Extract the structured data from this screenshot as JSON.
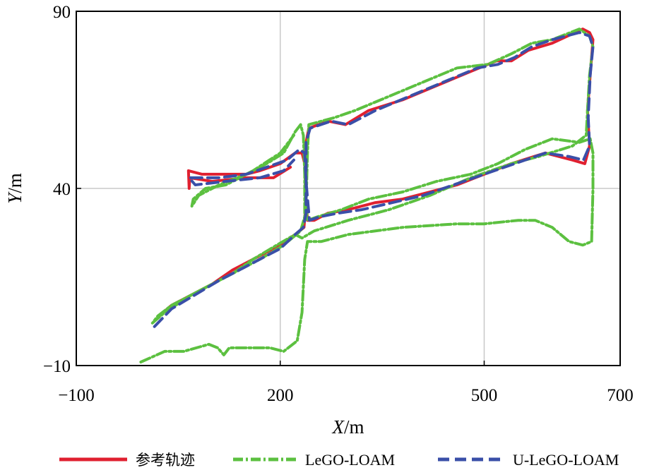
{
  "chart_data": {
    "type": "line",
    "title": "",
    "xlabel": {
      "var": "X",
      "unit": "/m"
    },
    "ylabel": {
      "var": "Y",
      "unit": "/m"
    },
    "xlim": [
      -100,
      700
    ],
    "ylim": [
      -10,
      90
    ],
    "xticks": [
      -100,
      200,
      500,
      700
    ],
    "yticks": [
      -10,
      40,
      90
    ],
    "xtick_labels": [
      "−100",
      "200",
      "500",
      "700"
    ],
    "ytick_labels": [
      "−10",
      "40",
      "90"
    ],
    "grid": {
      "x": [
        200,
        500
      ],
      "y": [
        40
      ]
    },
    "legend": {
      "placement": "bottom"
    },
    "series": [
      {
        "name": "参考轨迹",
        "color": "#e02030",
        "dash": "solid",
        "points": [
          [
            22,
            4
          ],
          [
            40,
            7
          ],
          [
            70,
            10
          ],
          [
            100,
            13
          ],
          [
            130,
            17
          ],
          [
            160,
            20
          ],
          [
            180,
            22
          ],
          [
            200,
            24
          ],
          [
            222,
            27
          ],
          [
            235,
            29
          ],
          [
            237,
            34
          ],
          [
            238,
            44
          ],
          [
            237,
            52
          ],
          [
            242,
            57
          ],
          [
            270,
            59
          ],
          [
            296,
            58
          ],
          [
            330,
            62
          ],
          [
            380,
            65
          ],
          [
            430,
            69
          ],
          [
            480,
            73
          ],
          [
            518,
            76
          ],
          [
            540,
            76
          ],
          [
            565,
            79
          ],
          [
            600,
            81
          ],
          [
            645,
            85
          ],
          [
            655,
            84
          ],
          [
            660,
            82
          ],
          [
            656,
            72
          ],
          [
            652,
            62
          ],
          [
            655,
            52
          ],
          [
            648,
            47
          ],
          [
            630,
            48
          ],
          [
            590,
            50
          ],
          [
            540,
            47
          ],
          [
            500,
            44
          ],
          [
            460,
            41
          ],
          [
            420,
            39
          ],
          [
            380,
            37
          ],
          [
            340,
            36
          ],
          [
            300,
            34
          ],
          [
            270,
            33
          ],
          [
            250,
            31
          ],
          [
            240,
            31
          ],
          [
            237,
            40
          ],
          [
            236,
            47
          ],
          [
            232,
            50
          ],
          [
            222,
            50
          ],
          [
            200,
            47
          ],
          [
            170,
            45
          ],
          [
            150,
            44
          ],
          [
            120,
            44
          ],
          [
            85,
            44
          ],
          [
            65,
            45
          ],
          [
            66,
            40
          ],
          [
            67,
            43
          ],
          [
            100,
            42
          ],
          [
            150,
            43
          ],
          [
            190,
            43
          ],
          [
            215,
            46
          ]
        ]
      },
      {
        "name": "LeGO-LOAM",
        "color": "#5cc040",
        "dash": "dash-dot",
        "points": [
          [
            -5,
            -9
          ],
          [
            30,
            -6
          ],
          [
            58,
            -6
          ],
          [
            95,
            -4
          ],
          [
            108,
            -5
          ],
          [
            117,
            -7
          ],
          [
            125,
            -5
          ],
          [
            185,
            -5
          ],
          [
            205,
            -6
          ],
          [
            225,
            -3
          ],
          [
            232,
            5
          ],
          [
            236,
            20
          ],
          [
            240,
            25
          ],
          [
            260,
            25
          ],
          [
            300,
            27
          ],
          [
            380,
            29
          ],
          [
            460,
            30
          ],
          [
            500,
            30
          ],
          [
            550,
            31
          ],
          [
            575,
            31
          ],
          [
            600,
            29
          ],
          [
            625,
            25
          ],
          [
            645,
            24
          ],
          [
            658,
            25
          ],
          [
            660,
            40
          ],
          [
            660,
            50
          ],
          [
            656,
            54
          ],
          [
            640,
            53
          ],
          [
            600,
            54
          ],
          [
            560,
            51
          ],
          [
            520,
            47
          ],
          [
            480,
            44
          ],
          [
            430,
            42
          ],
          [
            380,
            39
          ],
          [
            330,
            37
          ],
          [
            290,
            34
          ],
          [
            255,
            32
          ],
          [
            240,
            31
          ],
          [
            238,
            35
          ],
          [
            240,
            50
          ],
          [
            242,
            58
          ],
          [
            280,
            60
          ],
          [
            310,
            62
          ],
          [
            360,
            66
          ],
          [
            410,
            70
          ],
          [
            460,
            74
          ],
          [
            505,
            75
          ],
          [
            540,
            78
          ],
          [
            570,
            81
          ],
          [
            600,
            82
          ],
          [
            640,
            85
          ],
          [
            655,
            83
          ],
          [
            660,
            80
          ],
          [
            655,
            72
          ],
          [
            652,
            62
          ],
          [
            650,
            55
          ],
          [
            630,
            52
          ],
          [
            580,
            49
          ],
          [
            540,
            47
          ],
          [
            480,
            43
          ],
          [
            420,
            38
          ],
          [
            360,
            34
          ],
          [
            300,
            31
          ],
          [
            250,
            28
          ],
          [
            232,
            26
          ],
          [
            222,
            27
          ],
          [
            195,
            24
          ],
          [
            160,
            20
          ],
          [
            130,
            16
          ],
          [
            100,
            13
          ],
          [
            70,
            10
          ],
          [
            40,
            7
          ],
          [
            20,
            4
          ],
          [
            12,
            2
          ],
          [
            30,
            5
          ],
          [
            70,
            10
          ],
          [
            120,
            15
          ],
          [
            170,
            20
          ],
          [
            205,
            24
          ],
          [
            230,
            28
          ],
          [
            236,
            32
          ],
          [
            236,
            44
          ],
          [
            234,
            55
          ],
          [
            230,
            58
          ],
          [
            222,
            56
          ],
          [
            205,
            50
          ],
          [
            180,
            47
          ],
          [
            150,
            44
          ],
          [
            110,
            41
          ],
          [
            80,
            38
          ],
          [
            70,
            35
          ],
          [
            72,
            37
          ],
          [
            90,
            40
          ],
          [
            120,
            41
          ],
          [
            160,
            45
          ],
          [
            200,
            50
          ],
          [
            220,
            55
          ]
        ]
      },
      {
        "name": "U-LeGO-LOAM",
        "color": "#3a4fa8",
        "dash": "dashed",
        "points": [
          [
            15,
            1
          ],
          [
            40,
            6
          ],
          [
            75,
            10
          ],
          [
            110,
            14
          ],
          [
            140,
            17
          ],
          [
            170,
            20
          ],
          [
            200,
            23
          ],
          [
            222,
            27
          ],
          [
            234,
            29
          ],
          [
            238,
            33
          ],
          [
            238,
            45
          ],
          [
            238,
            53
          ],
          [
            244,
            57
          ],
          [
            275,
            59
          ],
          [
            300,
            58
          ],
          [
            340,
            62
          ],
          [
            390,
            66
          ],
          [
            440,
            70
          ],
          [
            490,
            74
          ],
          [
            520,
            75
          ],
          [
            545,
            77
          ],
          [
            570,
            80
          ],
          [
            600,
            82
          ],
          [
            640,
            84
          ],
          [
            655,
            83
          ],
          [
            660,
            80
          ],
          [
            656,
            72
          ],
          [
            653,
            60
          ],
          [
            655,
            52
          ],
          [
            646,
            48
          ],
          [
            625,
            49
          ],
          [
            590,
            50
          ],
          [
            545,
            47
          ],
          [
            500,
            44
          ],
          [
            455,
            41
          ],
          [
            410,
            38
          ],
          [
            365,
            36
          ],
          [
            320,
            34
          ],
          [
            285,
            33
          ],
          [
            258,
            32
          ],
          [
            243,
            31
          ],
          [
            238,
            42
          ],
          [
            236,
            50
          ],
          [
            228,
            51
          ],
          [
            210,
            48
          ],
          [
            180,
            46
          ],
          [
            150,
            44
          ],
          [
            110,
            43
          ],
          [
            80,
            43
          ],
          [
            66,
            43
          ],
          [
            75,
            41
          ],
          [
            120,
            42
          ],
          [
            170,
            43
          ],
          [
            205,
            45
          ],
          [
            220,
            48
          ]
        ]
      }
    ]
  }
}
